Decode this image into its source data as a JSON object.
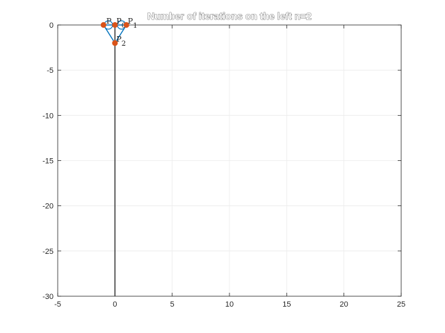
{
  "chart_data": {
    "type": "line",
    "title": "Number of iterations on the left n=2",
    "xlabel": "",
    "ylabel": "",
    "xlim": [
      -5,
      25
    ],
    "ylim": [
      -30,
      0
    ],
    "grid": true,
    "x_ticks": [
      -5,
      0,
      5,
      10,
      15,
      20,
      25
    ],
    "y_ticks": [
      0,
      -5,
      -10,
      -15,
      -20,
      -25,
      -30
    ],
    "x_tick_labels": [
      "-5",
      "0",
      "5",
      "10",
      "15",
      "20",
      "25"
    ],
    "y_tick_labels": [
      "0",
      "-5",
      "-10",
      "-15",
      "-20",
      "-25",
      "-30"
    ],
    "vertical_line": {
      "x": 0,
      "y": [
        -30,
        0
      ],
      "color": "#404040"
    },
    "series": [
      {
        "color": "#0072BD",
        "segments": [
          [
            [
              -1,
              0
            ],
            [
              0,
              -2
            ]
          ],
          [
            [
              1,
              0
            ],
            [
              0,
              -2
            ]
          ],
          [
            [
              -1,
              0
            ],
            [
              0,
              0
            ]
          ],
          [
            [
              0,
              0
            ],
            [
              1,
              0
            ]
          ]
        ]
      }
    ],
    "arcs_color": "#0072BD",
    "points": [
      {
        "x": -1,
        "y": 0,
        "label": "P",
        "sub": ""
      },
      {
        "x": 0,
        "y": 0,
        "label": "P",
        "sub": "0"
      },
      {
        "x": 1,
        "y": 0,
        "label": "P",
        "sub": "1"
      },
      {
        "x": 0,
        "y": -2,
        "label": "P",
        "sub": "2"
      }
    ],
    "point_color": "#D95319"
  }
}
